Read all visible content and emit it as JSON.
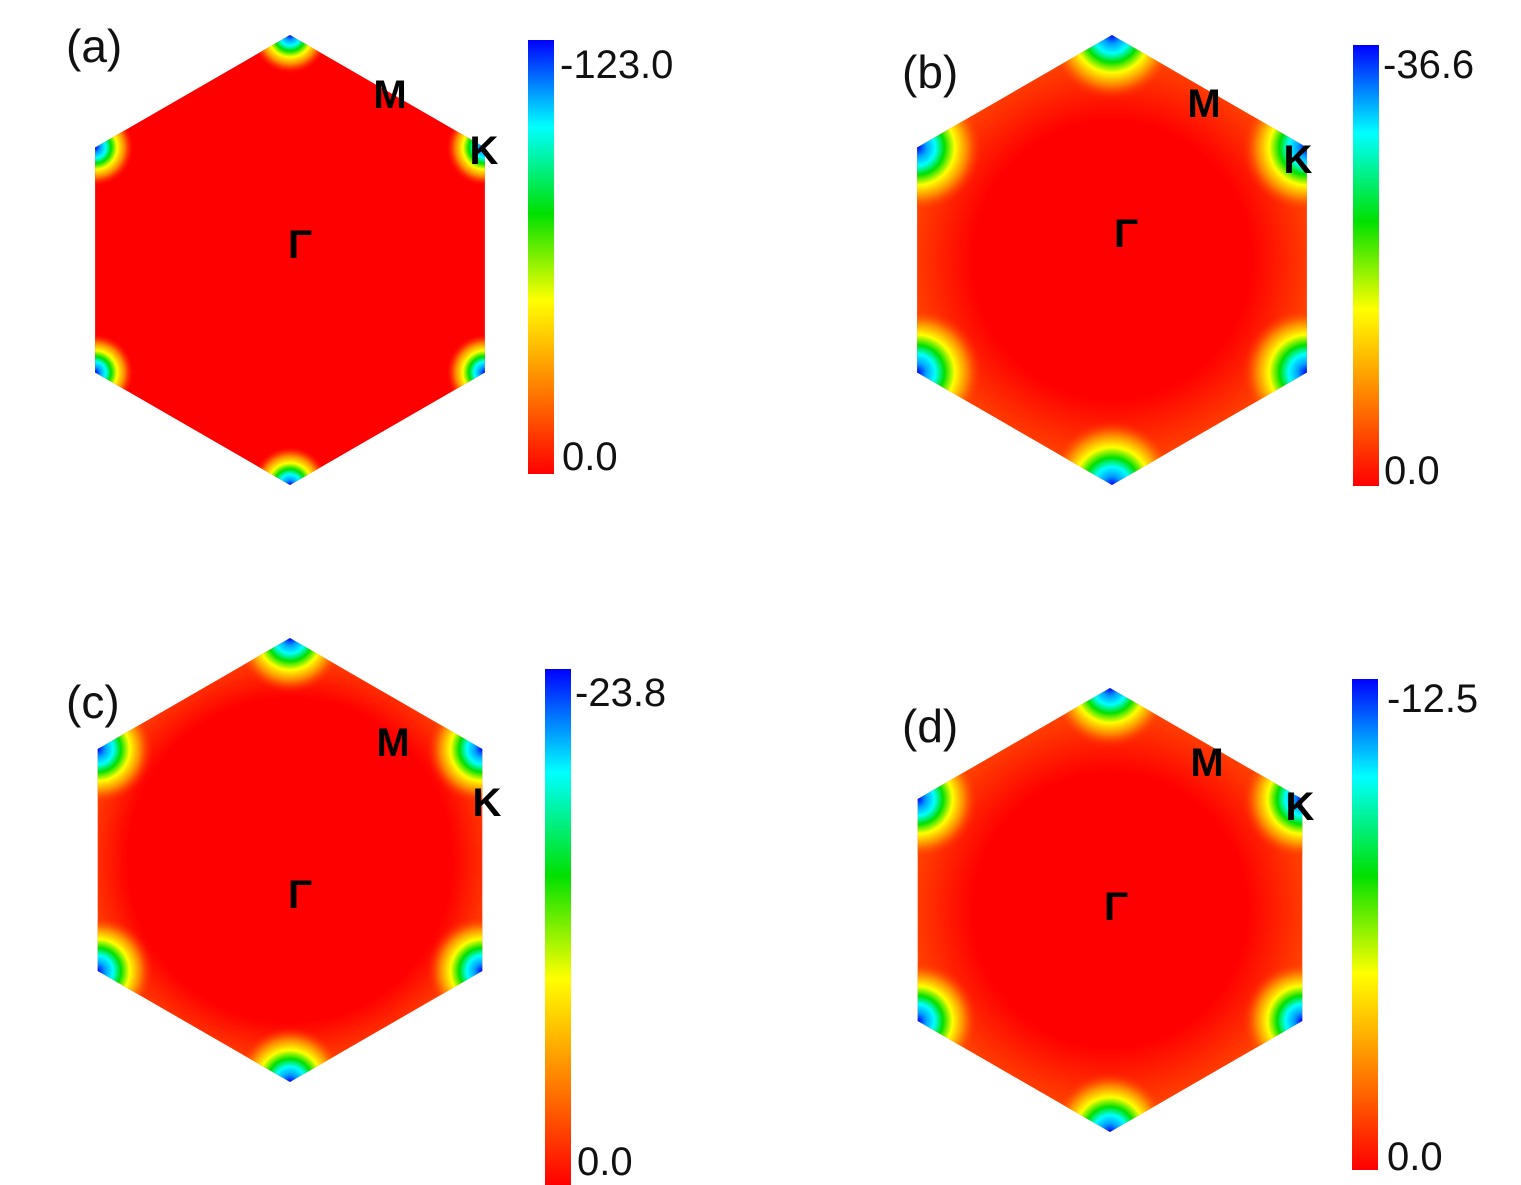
{
  "figure": {
    "colors": {
      "high": "#ff0000",
      "scale": [
        "#ff0000",
        "#ff8000",
        "#ffff00",
        "#00e000",
        "#00ffff",
        "#0000ff"
      ]
    }
  },
  "panels": [
    {
      "label": "(a)",
      "points": {
        "gamma": "Γ",
        "m": "M",
        "k": "K"
      },
      "colorbar": {
        "top": "-123.0",
        "bottom": "0.0"
      }
    },
    {
      "label": "(b)",
      "points": {
        "gamma": "Γ",
        "m": "M",
        "k": "K"
      },
      "colorbar": {
        "top": "-36.6",
        "bottom": "0.0"
      }
    },
    {
      "label": "(c)",
      "points": {
        "gamma": "Γ",
        "m": "M",
        "k": "K"
      },
      "colorbar": {
        "top": "-23.8",
        "bottom": "0.0"
      }
    },
    {
      "label": "(d)",
      "points": {
        "gamma": "Γ",
        "m": "M",
        "k": "K"
      },
      "colorbar": {
        "top": "-12.5",
        "bottom": "0.0"
      }
    }
  ],
  "chart_data": [
    {
      "type": "heatmap",
      "title": "(a)",
      "region": "hexagonal Brillouin zone",
      "high_symmetry_points": [
        "Γ",
        "M",
        "K"
      ],
      "colorbar": {
        "min": -123.0,
        "max": 0.0,
        "ticks": [
          "-123.0",
          "0.0"
        ]
      },
      "pattern": "uniform 0.0 across zone, small negative pockets at the six K corners"
    },
    {
      "type": "heatmap",
      "title": "(b)",
      "region": "hexagonal Brillouin zone",
      "high_symmetry_points": [
        "Γ",
        "M",
        "K"
      ],
      "colorbar": {
        "min": -36.6,
        "max": 0.0,
        "ticks": [
          "-36.6",
          "0.0"
        ]
      },
      "pattern": "0.0 near Γ, orange ring toward edges, strongest negative values at the K corners"
    },
    {
      "type": "heatmap",
      "title": "(c)",
      "region": "hexagonal Brillouin zone",
      "high_symmetry_points": [
        "Γ",
        "M",
        "K"
      ],
      "colorbar": {
        "min": -23.8,
        "max": 0.0,
        "ticks": [
          "-23.8",
          "0.0"
        ]
      },
      "pattern": "0.0 near Γ, weak orange toward edges, negative pockets at the K corners"
    },
    {
      "type": "heatmap",
      "title": "(d)",
      "region": "hexagonal Brillouin zone",
      "high_symmetry_points": [
        "Γ",
        "M",
        "K"
      ],
      "colorbar": {
        "min": -12.5,
        "max": 0.0,
        "ticks": [
          "-12.5",
          "0.0"
        ]
      },
      "pattern": "0.0 near Γ, orange ring toward edges, strongest negative values at the K corners"
    }
  ]
}
